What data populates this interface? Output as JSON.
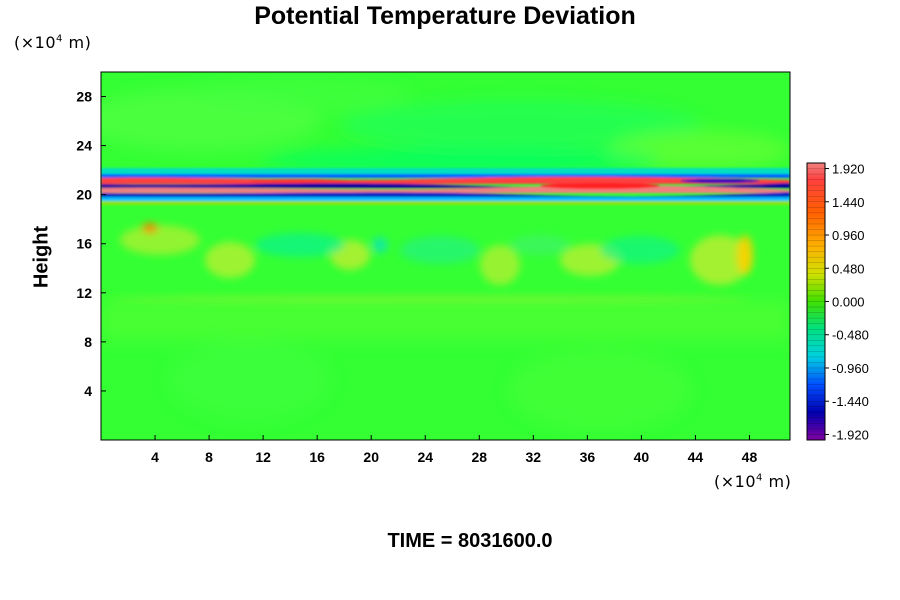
{
  "chart_data": {
    "type": "heatmap",
    "title": "Potential Temperature Deviation",
    "ylabel": "Height",
    "x_unit": {
      "prefix": "(×10",
      "exp": "4",
      "suffix": " m)"
    },
    "y_unit": {
      "prefix": "(×10",
      "exp": "4",
      "suffix": " m)"
    },
    "xlim": [
      0,
      51
    ],
    "ylim": [
      0,
      30
    ],
    "x_ticks": [
      4,
      8,
      12,
      16,
      20,
      24,
      28,
      32,
      36,
      40,
      44,
      48
    ],
    "y_ticks": [
      4,
      8,
      12,
      16,
      20,
      24,
      28
    ],
    "colorbar": {
      "min": -2.0,
      "max": 2.0,
      "labels": [
        "1.920",
        "1.440",
        "0.960",
        "0.480",
        "0.000",
        "-0.480",
        "-0.960",
        "-1.440",
        "-1.920"
      ],
      "label_values": [
        1.92,
        1.44,
        0.96,
        0.48,
        0.0,
        -0.48,
        -0.96,
        -1.44,
        -1.92
      ],
      "colors_top_to_bottom": [
        "#f08080",
        "#ff4040",
        "#ff8000",
        "#ffd000",
        "#a0e000",
        "#00d050",
        "#00e0c0",
        "#0040ff",
        "#0000a0",
        "#8000a0"
      ]
    },
    "field_description_regions": [
      {
        "y_range": [
          0,
          11
        ],
        "value_approx": 0.05
      },
      {
        "y_range": [
          11,
          18
        ],
        "value_approx": 0.2
      },
      {
        "y_range": [
          19,
          22
        ],
        "value_approx": "alternating -1.9 to 1.9"
      },
      {
        "y_range": [
          22,
          30
        ],
        "value_approx": 0.0
      }
    ]
  },
  "footer": {
    "time_label": "TIME = 8031600.0"
  },
  "colors": {
    "background": "#00ff00",
    "plot_bg": "#33ff33"
  }
}
